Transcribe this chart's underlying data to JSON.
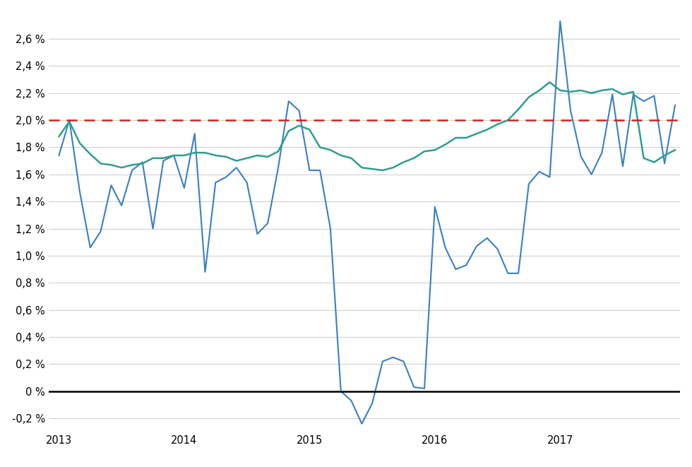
{
  "background_color": "#ffffff",
  "reference_line": 2.0,
  "reference_color": "#cc2222",
  "blue_color": "#3a7fc1",
  "green_color": "#2e9e8e",
  "zero_line_color": "#000000",
  "grid_color": "#d0d0d0",
  "ylim": [
    -0.3,
    2.8
  ],
  "yticks": [
    -0.2,
    0.0,
    0.2,
    0.4,
    0.6,
    0.8,
    1.0,
    1.2,
    1.4,
    1.6,
    1.8,
    2.0,
    2.2,
    2.4,
    2.6
  ],
  "xtick_labels": [
    "2013",
    "2014",
    "2015",
    "2016",
    "2017"
  ],
  "xtick_positions": [
    0,
    12,
    24,
    36,
    48
  ],
  "blue_y": [
    1.74,
    2.0,
    1.47,
    1.06,
    1.18,
    1.52,
    1.37,
    1.63,
    1.69,
    1.2,
    1.7,
    1.74,
    1.5,
    1.9,
    0.88,
    1.54,
    1.58,
    1.65,
    1.54,
    1.16,
    1.24,
    1.65,
    2.14,
    2.07,
    1.63,
    1.63,
    1.2,
    0.0,
    -0.07,
    -0.24,
    -0.09,
    0.22,
    0.25,
    0.22,
    0.03,
    0.02,
    1.36,
    1.06,
    0.9,
    0.93,
    1.07,
    1.13,
    1.05,
    0.87,
    0.87,
    1.53,
    1.62,
    1.58,
    2.73,
    2.07,
    1.73,
    1.6,
    1.76,
    2.19,
    1.66,
    2.19,
    2.14,
    2.18,
    1.68,
    2.11
  ],
  "green_y": [
    1.88,
    1.99,
    1.83,
    1.75,
    1.68,
    1.67,
    1.65,
    1.67,
    1.68,
    1.72,
    1.72,
    1.74,
    1.74,
    1.76,
    1.76,
    1.74,
    1.73,
    1.7,
    1.72,
    1.74,
    1.73,
    1.77,
    1.92,
    1.96,
    1.93,
    1.8,
    1.78,
    1.74,
    1.72,
    1.65,
    1.64,
    1.63,
    1.65,
    1.69,
    1.72,
    1.77,
    1.78,
    1.82,
    1.87,
    1.87,
    1.9,
    1.93,
    1.97,
    2.0,
    2.08,
    2.17,
    2.22,
    2.28,
    2.22,
    2.21,
    2.22,
    2.2,
    2.22,
    2.23,
    2.19,
    2.21,
    1.72,
    1.69,
    1.74,
    1.78
  ]
}
